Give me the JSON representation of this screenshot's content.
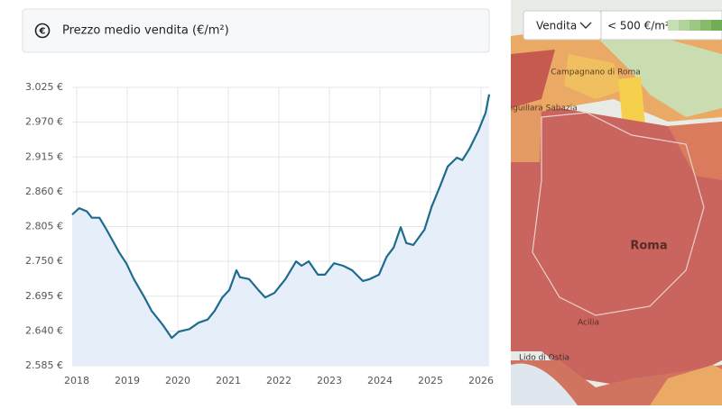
{
  "header": {
    "icon": "€",
    "title": "Prezzo medio vendita (€/m²)"
  },
  "chart_data": {
    "type": "line",
    "x": [
      2017.91,
      2018.05,
      2018.2,
      2018.3,
      2018.45,
      2018.59,
      2018.84,
      2018.98,
      2019.13,
      2019.34,
      2019.48,
      2019.7,
      2019.88,
      2020.02,
      2020.23,
      2020.41,
      2020.59,
      2020.73,
      2020.88,
      2021.02,
      2021.16,
      2021.23,
      2021.41,
      2021.59,
      2021.73,
      2021.91,
      2022.13,
      2022.34,
      2022.45,
      2022.59,
      2022.77,
      2022.91,
      2023.09,
      2023.27,
      2023.45,
      2023.66,
      2023.8,
      2023.98,
      2024.13,
      2024.27,
      2024.41,
      2024.52,
      2024.66,
      2024.88,
      2025.02,
      2025.2,
      2025.34,
      2025.52,
      2025.63,
      2025.77,
      2025.95,
      2026.09,
      2026.16
    ],
    "values": [
      2824,
      2834,
      2829,
      2819,
      2819,
      2800,
      2764,
      2747,
      2722,
      2693,
      2672,
      2650,
      2629,
      2639,
      2643,
      2653,
      2658,
      2672,
      2693,
      2705,
      2736,
      2725,
      2722,
      2705,
      2693,
      2700,
      2722,
      2750,
      2743,
      2750,
      2729,
      2729,
      2747,
      2743,
      2736,
      2719,
      2722,
      2729,
      2757,
      2772,
      2804,
      2779,
      2776,
      2800,
      2836,
      2871,
      2900,
      2914,
      2910,
      2928,
      2957,
      2985,
      3014
    ],
    "color": "#1f6b8e",
    "area_color": "#e6eef9",
    "xlim": [
      2017.91,
      2026.16
    ],
    "xticks": [
      2018,
      2019,
      2020,
      2021,
      2022,
      2023,
      2024,
      2025,
      2026
    ],
    "ylim": [
      2585,
      3025
    ],
    "yticks": [
      {
        "value": 2585,
        "label": "2.585 €"
      },
      {
        "value": 2640,
        "label": "2.640 €"
      },
      {
        "value": 2695,
        "label": "2.695 €"
      },
      {
        "value": 2750,
        "label": "2.750 €"
      },
      {
        "value": 2805,
        "label": "2.805 €"
      },
      {
        "value": 2860,
        "label": "2.860 €"
      },
      {
        "value": 2915,
        "label": "2.915 €"
      },
      {
        "value": 2970,
        "label": "2.970 €"
      },
      {
        "value": 3025,
        "label": "3.025 €"
      }
    ],
    "grid": true
  },
  "map": {
    "mode": "Vendita",
    "legend_min": "< 500 €/m²",
    "labels": [
      "Roma",
      "Acilia",
      "Lido di Ostia",
      "Anguillara Sabazia",
      "Campagnano di Roma"
    ]
  }
}
